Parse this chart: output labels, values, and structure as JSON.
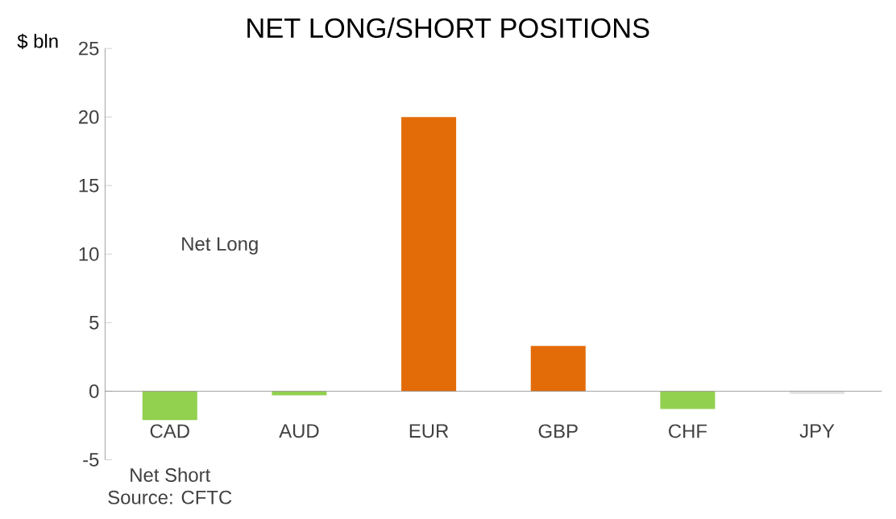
{
  "chart_data": {
    "type": "bar",
    "title": "NET LONG/SHORT POSITIONS",
    "ylabel": "$ bln",
    "categories": [
      "CAD",
      "AUD",
      "EUR",
      "GBP",
      "CHF",
      "JPY"
    ],
    "values": [
      -2.1,
      -0.3,
      20.0,
      3.3,
      -1.3,
      -0.2
    ],
    "colors": [
      "#92d050",
      "#92d050",
      "#e36c09",
      "#e36c09",
      "#92d050",
      "#e0e0e0"
    ],
    "ylim": [
      -5,
      25
    ],
    "yticks": [
      -5,
      0,
      5,
      10,
      15,
      20,
      25
    ],
    "annotations": [
      "Net Long",
      "Net Short",
      "Source: CFTC"
    ]
  }
}
